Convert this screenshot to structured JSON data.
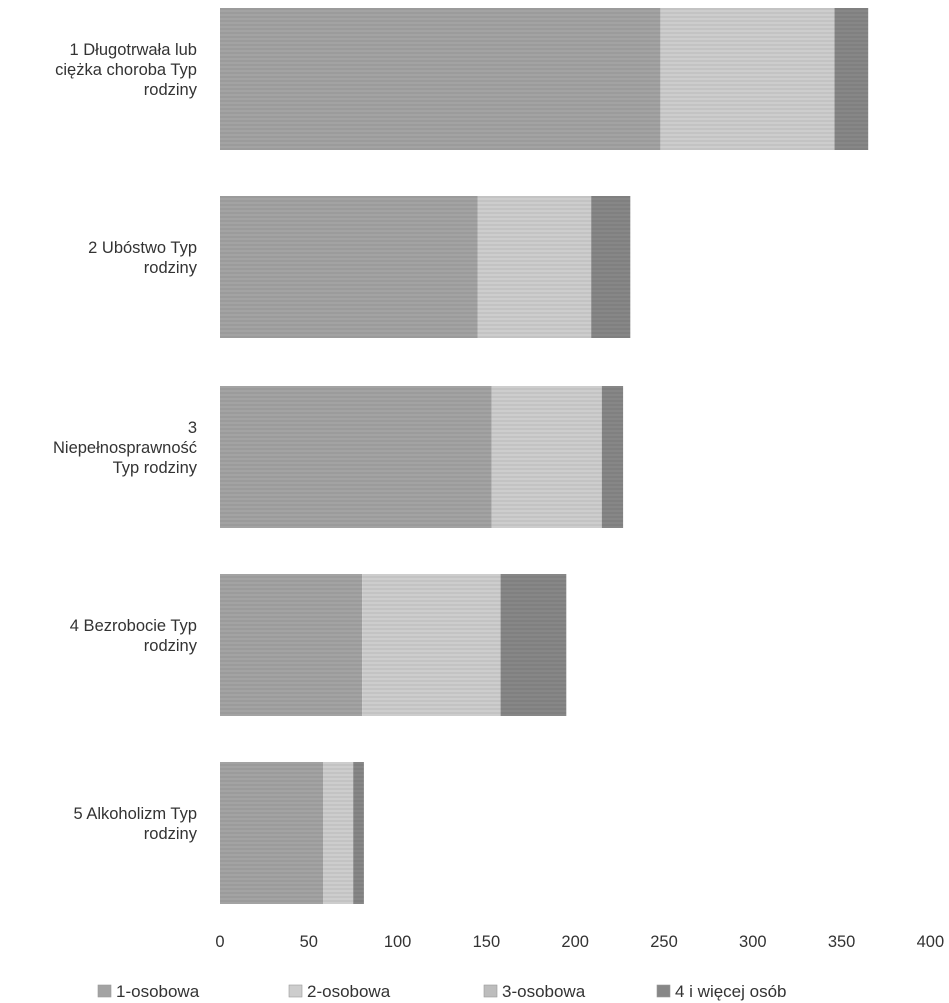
{
  "chart_data": {
    "type": "bar",
    "orientation": "horizontal",
    "stacked": true,
    "categories": [
      [
        "1 Długotrwała lub",
        "ciężka choroba Typ",
        "rodziny"
      ],
      [
        "2 Ubóstwo Typ",
        "rodziny"
      ],
      [
        "3",
        "Niepełnosprawność",
        "Typ rodziny"
      ],
      [
        "4 Bezrobocie Typ",
        "rodziny"
      ],
      [
        "5 Alkoholizm Typ",
        "rodziny"
      ]
    ],
    "series": [
      {
        "name": "1-osobowa",
        "color": "#a3a3a3",
        "values": [
          248,
          145,
          153,
          80,
          58
        ]
      },
      {
        "name": "2-osobowa",
        "color": "#cdcdcd",
        "values": [
          98,
          64,
          62,
          78,
          17
        ]
      },
      {
        "name": "3-osobowa",
        "color": "#bdbdbd",
        "values": [
          0,
          0,
          0,
          0,
          0
        ]
      },
      {
        "name": "4  i więcej osób",
        "color": "#878787",
        "values": [
          19,
          22,
          12,
          37,
          6
        ]
      }
    ],
    "xlim": [
      0,
      400
    ],
    "xticks": [
      "0",
      "50",
      "100",
      "150",
      "200",
      "250",
      "300",
      "350",
      "400"
    ],
    "xtick_values": [
      0,
      50,
      100,
      150,
      200,
      250,
      300,
      350,
      400
    ],
    "grid": false,
    "legend_position": "bottom"
  }
}
